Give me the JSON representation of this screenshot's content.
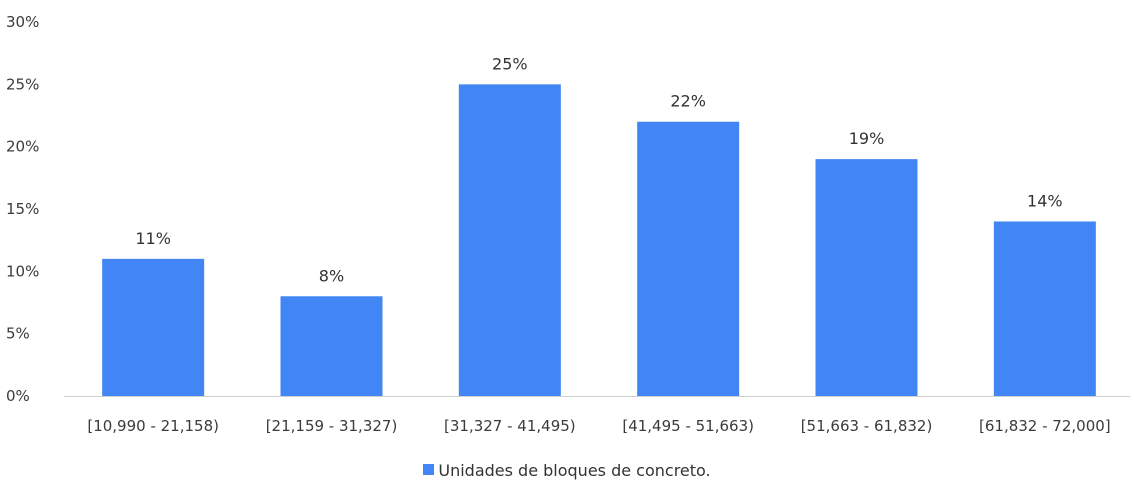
{
  "chart_data": {
    "type": "bar",
    "categories": [
      "[10,990 - 21,158)",
      "[21,159 - 31,327)",
      "[31,327 - 41,495)",
      "[41,495 -  51,663)",
      "[51,663 - 61,832)",
      "[61,832 - 72,000]"
    ],
    "series": [
      {
        "name": "Unidades de bloques de concreto.",
        "values": [
          11,
          8,
          25,
          22,
          19,
          14
        ],
        "color": "#4285F4"
      }
    ],
    "data_labels": [
      "11%",
      "8%",
      "25%",
      "22%",
      "19%",
      "14%"
    ],
    "y_ticks": [
      "0%",
      "5%",
      "10%",
      "15%",
      "20%",
      "25%",
      "30%"
    ],
    "ylim": [
      0,
      30
    ],
    "grid": false,
    "legend": "bottom",
    "title": "",
    "xlabel": "",
    "ylabel": ""
  }
}
